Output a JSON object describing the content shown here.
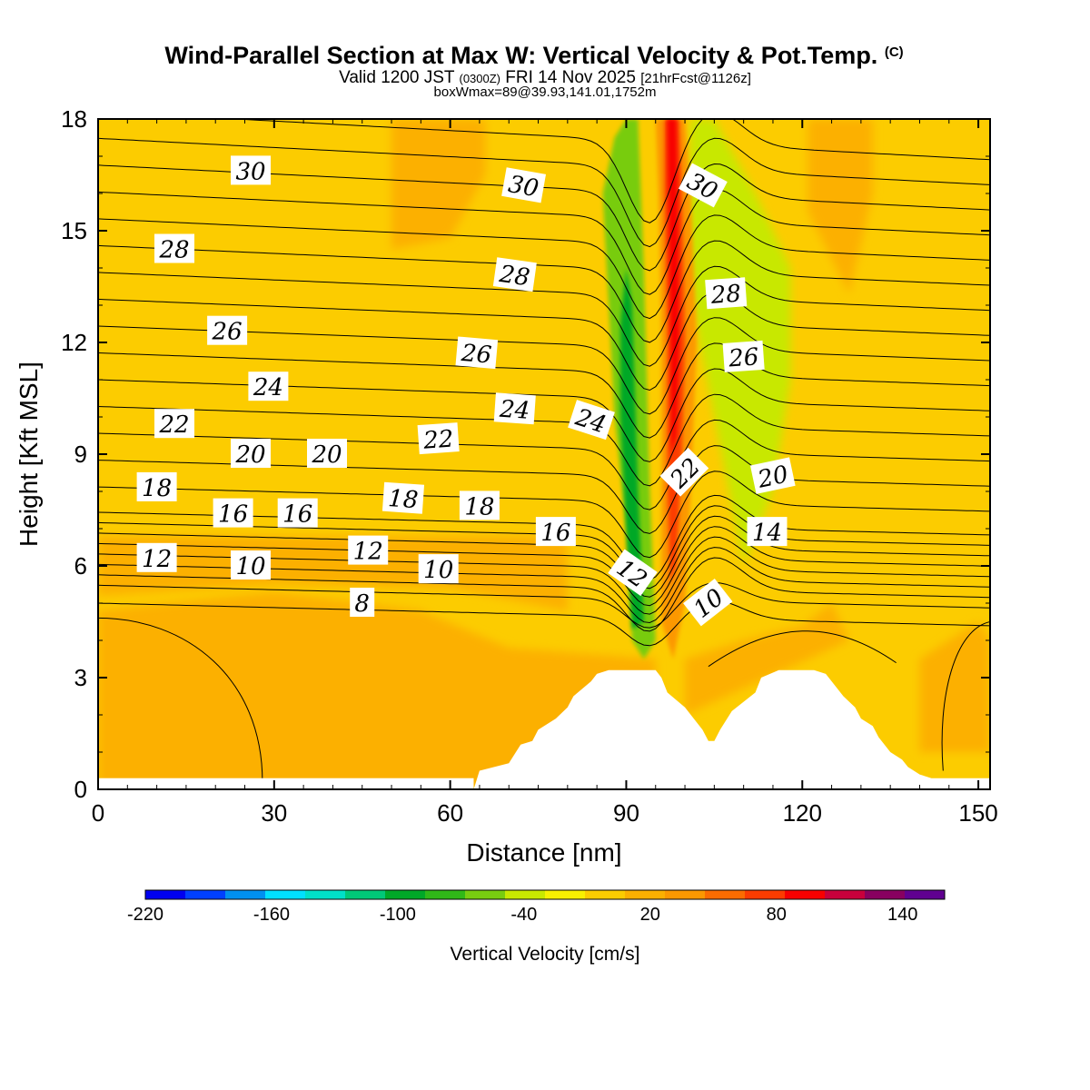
{
  "chart_data": {
    "type": "heatmap",
    "title": "Wind-Parallel Section at Max W: Vertical Velocity & Pot.Temp.",
    "title_mark": "(C)",
    "subtitle": {
      "prefix": "Valid 1200 JST",
      "utc": "(0300Z)",
      "date": "FRI 14 Nov 2025",
      "forecast": "[21hrFcst@1126z]"
    },
    "subtitle2": "boxWmax=89@39.93,141.01,1752m",
    "xlabel": "Distance [nm]",
    "ylabel": "Height [Kft MSL]",
    "xlim": [
      0,
      152
    ],
    "ylim": [
      0,
      18
    ],
    "xticks": [
      "0",
      "30",
      "60",
      "90",
      "120",
      "150"
    ],
    "yticks": [
      "0",
      "3",
      "6",
      "9",
      "12",
      "15",
      "18"
    ],
    "colorbar": {
      "label": "Vertical Velocity [cm/s]",
      "tick_labels": [
        "-220",
        "-160",
        "-100",
        "-40",
        "20",
        "80",
        "140"
      ],
      "tick_values": [
        -220,
        -160,
        -100,
        -40,
        20,
        80,
        140
      ],
      "min": -220,
      "max": 160,
      "step": 20,
      "colors": [
        "#0000f0",
        "#0040ff",
        "#0090f0",
        "#00e0ff",
        "#00e0c8",
        "#00c878",
        "#00a828",
        "#30b818",
        "#78cc10",
        "#c8e800",
        "#f8f000",
        "#fccc00",
        "#fcb000",
        "#fc9800",
        "#fc6c00",
        "#fc3c00",
        "#f80000",
        "#c8003c",
        "#880060",
        "#600090"
      ]
    },
    "terrain_x": [
      0,
      30,
      50,
      64,
      65,
      70,
      72,
      74,
      75,
      78,
      80,
      81,
      84,
      85,
      87,
      88,
      90,
      91,
      92,
      94,
      95,
      96,
      97,
      100,
      103,
      104,
      105,
      106,
      108,
      112,
      113,
      116,
      117,
      118,
      121,
      122,
      124,
      125,
      127,
      129,
      130,
      132,
      133,
      134,
      135,
      137,
      138,
      140,
      142,
      143,
      145,
      149,
      150,
      152
    ],
    "terrain_y": [
      0,
      0,
      0,
      0,
      0.5,
      0.7,
      1.2,
      1.3,
      1.6,
      1.9,
      2.2,
      2.5,
      2.9,
      3.1,
      3.2,
      3.2,
      3.2,
      3.2,
      3.2,
      3.2,
      3.2,
      3.0,
      2.6,
      2.2,
      1.6,
      1.3,
      1.3,
      1.6,
      2.1,
      2.6,
      3.0,
      3.2,
      3.2,
      3.2,
      3.2,
      3.2,
      3.1,
      2.9,
      2.5,
      2.2,
      1.9,
      1.7,
      1.4,
      1.2,
      1.0,
      0.8,
      0.6,
      0.4,
      0.3,
      0.3,
      0.3,
      0.3,
      0.3,
      0.3
    ],
    "theta_contour_levels": [
      8,
      9,
      10,
      11,
      12,
      13,
      14,
      15,
      16,
      17,
      18,
      19,
      20,
      21,
      22,
      23,
      24,
      25,
      26,
      27,
      28,
      29,
      30,
      31
    ],
    "contour_labels": [
      {
        "text": "30",
        "x": 26,
        "y": 16.6,
        "rot": 0
      },
      {
        "text": "30",
        "x": 72.5,
        "y": 16.2,
        "rot": 10
      },
      {
        "text": "30",
        "x": 103,
        "y": 16.2,
        "rot": 28
      },
      {
        "text": "28",
        "x": 13,
        "y": 14.5,
        "rot": 0
      },
      {
        "text": "28",
        "x": 71,
        "y": 13.8,
        "rot": 8
      },
      {
        "text": "28",
        "x": 107,
        "y": 13.3,
        "rot": -4
      },
      {
        "text": "26",
        "x": 22,
        "y": 12.3,
        "rot": 0
      },
      {
        "text": "26",
        "x": 64.5,
        "y": 11.7,
        "rot": 5
      },
      {
        "text": "26",
        "x": 110,
        "y": 11.6,
        "rot": -4
      },
      {
        "text": "24",
        "x": 29,
        "y": 10.8,
        "rot": 0
      },
      {
        "text": "24",
        "x": 71,
        "y": 10.2,
        "rot": 4
      },
      {
        "text": "24",
        "x": 84,
        "y": 9.9,
        "rot": 18
      },
      {
        "text": "22",
        "x": 13,
        "y": 9.8,
        "rot": 0
      },
      {
        "text": "22",
        "x": 58,
        "y": 9.4,
        "rot": -4
      },
      {
        "text": "22",
        "x": 100,
        "y": 8.5,
        "rot": -45
      },
      {
        "text": "20",
        "x": 26,
        "y": 9.0,
        "rot": 0
      },
      {
        "text": "20",
        "x": 39,
        "y": 9.0,
        "rot": 0
      },
      {
        "text": "20",
        "x": 115,
        "y": 8.4,
        "rot": -12
      },
      {
        "text": "18",
        "x": 10,
        "y": 8.1,
        "rot": 0
      },
      {
        "text": "18",
        "x": 52,
        "y": 7.8,
        "rot": 4
      },
      {
        "text": "18",
        "x": 65,
        "y": 7.6,
        "rot": 0
      },
      {
        "text": "16",
        "x": 23,
        "y": 7.4,
        "rot": 0
      },
      {
        "text": "16",
        "x": 34,
        "y": 7.4,
        "rot": 0
      },
      {
        "text": "16",
        "x": 78,
        "y": 6.9,
        "rot": 0
      },
      {
        "text": "14",
        "x": 114,
        "y": 6.9,
        "rot": 0
      },
      {
        "text": "12",
        "x": 10,
        "y": 6.2,
        "rot": 0
      },
      {
        "text": "12",
        "x": 46,
        "y": 6.4,
        "rot": 0
      },
      {
        "text": "12",
        "x": 91,
        "y": 5.8,
        "rot": 35
      },
      {
        "text": "10",
        "x": 26,
        "y": 6.0,
        "rot": 0
      },
      {
        "text": "10",
        "x": 58,
        "y": 5.9,
        "rot": 0
      },
      {
        "text": "10",
        "x": 104,
        "y": 5.0,
        "rot": -38
      },
      {
        "text": "8",
        "x": 45,
        "y": 5.0,
        "rot": 0
      }
    ]
  }
}
